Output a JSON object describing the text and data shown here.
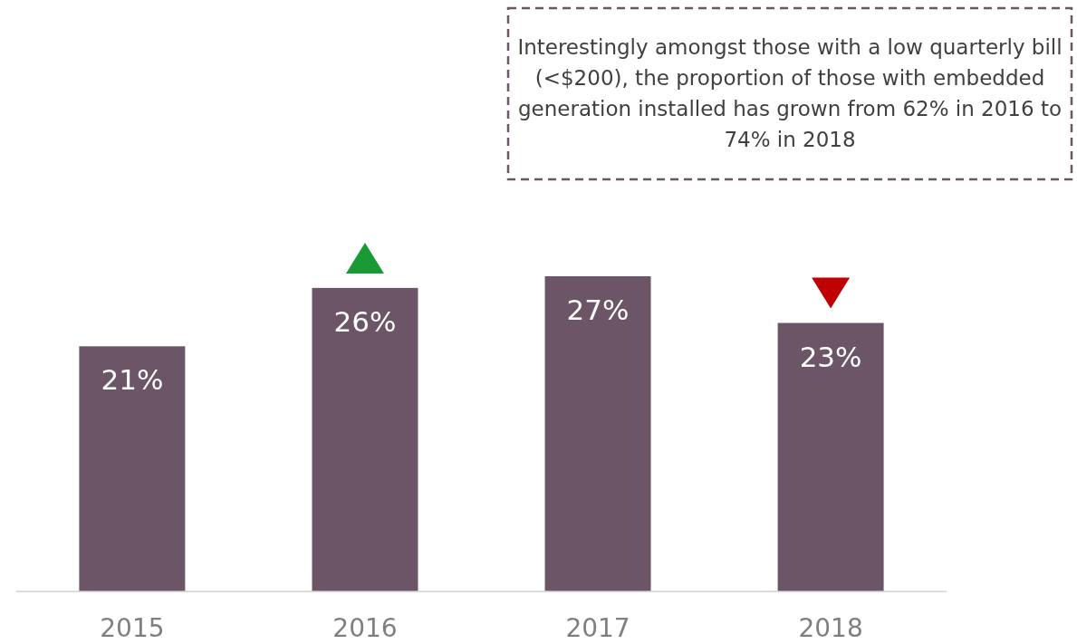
{
  "chart_data": {
    "type": "bar",
    "categories": [
      "2015",
      "2016",
      "2017",
      "2018"
    ],
    "values": [
      21,
      26,
      27,
      23
    ],
    "value_labels": [
      "21%",
      "26%",
      "27%",
      "23%"
    ],
    "color": "#6b5566",
    "grid": false,
    "annotations": [
      "Interestingly amongst those with a low quarterly bill (<$200), the proportion of those with embedded generation installed has grown from 62% in 2016 to 74% in 2018"
    ]
  }
}
